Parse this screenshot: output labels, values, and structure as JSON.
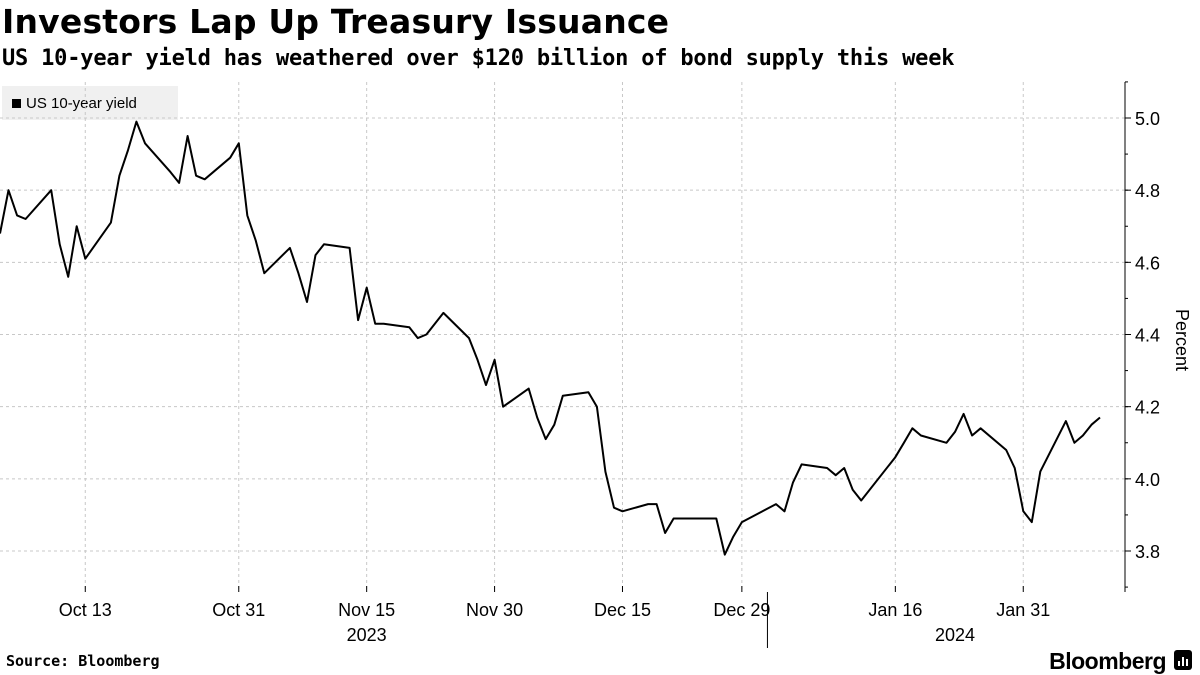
{
  "header": {
    "title": "Investors Lap Up Treasury Issuance",
    "subtitle": "US 10-year yield has weathered over $120 billion of bond supply this week"
  },
  "legend": {
    "label": "US 10-year yield"
  },
  "footer": {
    "source": "Source: Bloomberg",
    "brand": "Bloomberg"
  },
  "colors": {
    "line": "#000000",
    "grid": "#c8c8c8",
    "legend_bg": "#f0f0f0"
  },
  "chart_data": {
    "type": "line",
    "title": "Investors Lap Up Treasury Issuance",
    "subtitle": "US 10-year yield has weathered over $120 billion of bond supply this week",
    "ylabel": "Percent",
    "ylim": [
      3.7,
      5.1
    ],
    "yticks": [
      3.8,
      4.0,
      4.2,
      4.4,
      4.6,
      4.8,
      5.0
    ],
    "xlim": [
      "2023-10-03",
      "2024-02-11"
    ],
    "xticks": [
      {
        "date": "2023-10-13",
        "label": "Oct 13"
      },
      {
        "date": "2023-10-31",
        "label": "Oct 31"
      },
      {
        "date": "2023-11-15",
        "label": "Nov 15"
      },
      {
        "date": "2023-11-30",
        "label": "Nov 30"
      },
      {
        "date": "2023-12-15",
        "label": "Dec 15"
      },
      {
        "date": "2023-12-29",
        "label": "Dec 29"
      },
      {
        "date": "2024-01-16",
        "label": "Jan 16"
      },
      {
        "date": "2024-01-31",
        "label": "Jan 31"
      }
    ],
    "year_labels": [
      {
        "date": "2023-11-15",
        "label": "2023"
      },
      {
        "date": "2024-01-23",
        "label": "2024"
      }
    ],
    "grid": true,
    "legend_position": "top-left",
    "series": [
      {
        "name": "US 10-year yield",
        "x": [
          "2023-10-03",
          "2023-10-04",
          "2023-10-05",
          "2023-10-06",
          "2023-10-09",
          "2023-10-10",
          "2023-10-11",
          "2023-10-12",
          "2023-10-13",
          "2023-10-16",
          "2023-10-17",
          "2023-10-18",
          "2023-10-19",
          "2023-10-20",
          "2023-10-23",
          "2023-10-24",
          "2023-10-25",
          "2023-10-26",
          "2023-10-27",
          "2023-10-30",
          "2023-10-31",
          "2023-11-01",
          "2023-11-02",
          "2023-11-03",
          "2023-11-06",
          "2023-11-07",
          "2023-11-08",
          "2023-11-09",
          "2023-11-10",
          "2023-11-13",
          "2023-11-14",
          "2023-11-15",
          "2023-11-16",
          "2023-11-17",
          "2023-11-20",
          "2023-11-21",
          "2023-11-22",
          "2023-11-24",
          "2023-11-27",
          "2023-11-28",
          "2023-11-29",
          "2023-11-30",
          "2023-12-01",
          "2023-12-04",
          "2023-12-05",
          "2023-12-06",
          "2023-12-07",
          "2023-12-08",
          "2023-12-11",
          "2023-12-12",
          "2023-12-13",
          "2023-12-14",
          "2023-12-15",
          "2023-12-18",
          "2023-12-19",
          "2023-12-20",
          "2023-12-21",
          "2023-12-22",
          "2023-12-26",
          "2023-12-27",
          "2023-12-28",
          "2023-12-29",
          "2024-01-02",
          "2024-01-03",
          "2024-01-04",
          "2024-01-05",
          "2024-01-08",
          "2024-01-09",
          "2024-01-10",
          "2024-01-11",
          "2024-01-12",
          "2024-01-16",
          "2024-01-17",
          "2024-01-18",
          "2024-01-19",
          "2024-01-22",
          "2024-01-23",
          "2024-01-24",
          "2024-01-25",
          "2024-01-26",
          "2024-01-29",
          "2024-01-30",
          "2024-01-31",
          "2024-02-01",
          "2024-02-02",
          "2024-02-05",
          "2024-02-06",
          "2024-02-07",
          "2024-02-08",
          "2024-02-09"
        ],
        "values": [
          4.68,
          4.8,
          4.73,
          4.72,
          4.8,
          4.65,
          4.56,
          4.7,
          4.61,
          4.71,
          4.84,
          4.91,
          4.99,
          4.93,
          4.85,
          4.82,
          4.95,
          4.84,
          4.83,
          4.89,
          4.93,
          4.73,
          4.66,
          4.57,
          4.64,
          4.57,
          4.49,
          4.62,
          4.65,
          4.64,
          4.44,
          4.53,
          4.43,
          4.43,
          4.42,
          4.39,
          4.4,
          4.46,
          4.39,
          4.33,
          4.26,
          4.33,
          4.2,
          4.25,
          4.17,
          4.11,
          4.15,
          4.23,
          4.24,
          4.2,
          4.02,
          3.92,
          3.91,
          3.93,
          3.93,
          3.85,
          3.89,
          3.89,
          3.89,
          3.79,
          3.84,
          3.88,
          3.93,
          3.91,
          3.99,
          4.04,
          4.03,
          4.01,
          4.03,
          3.97,
          3.94,
          4.06,
          4.1,
          4.14,
          4.12,
          4.1,
          4.13,
          4.18,
          4.12,
          4.14,
          4.08,
          4.03,
          3.91,
          3.88,
          4.02,
          4.16,
          4.1,
          4.12,
          4.15,
          4.17
        ]
      }
    ]
  }
}
